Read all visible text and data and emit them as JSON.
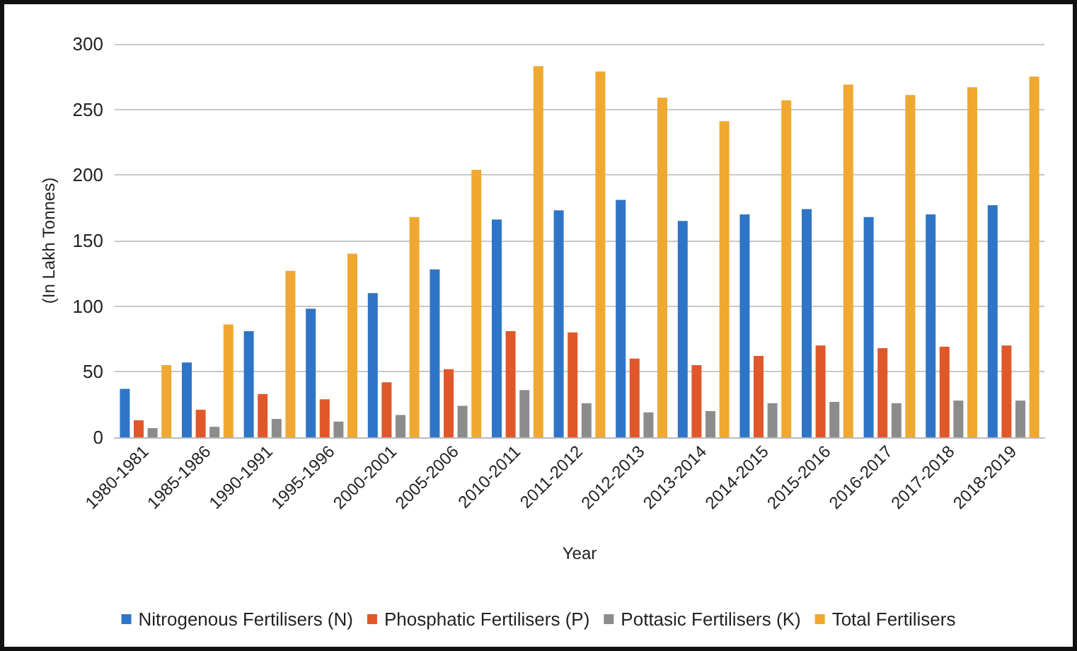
{
  "chart_data": {
    "type": "bar",
    "xlabel": "Year",
    "ylabel": "(In Lakh Tonnes)",
    "categories": [
      "1980-1981",
      "1985-1986",
      "1990-1991",
      "1995-1996",
      "2000-2001",
      "2005-2006",
      "2010-2011",
      "2011-2012",
      "2012-2013",
      "2013-2014",
      "2014-2015",
      "2015-2016",
      "2016-2017",
      "2017-2018",
      "2018-2019"
    ],
    "series": [
      {
        "name": "Nitrogenous Fertilisers (N)",
        "color": "#2e75c7",
        "values": [
          37,
          57,
          81,
          98,
          110,
          128,
          166,
          173,
          181,
          165,
          170,
          174,
          168,
          170,
          177
        ]
      },
      {
        "name": "Phosphatic Fertilisers (P)",
        "color": "#e0572a",
        "values": [
          13,
          21,
          33,
          29,
          42,
          52,
          81,
          80,
          60,
          55,
          62,
          70,
          68,
          69,
          70
        ]
      },
      {
        "name": "Pottasic Fertilisers (K)",
        "color": "#8c8c8c",
        "values": [
          7,
          8,
          14,
          12,
          17,
          24,
          36,
          26,
          19,
          20,
          26,
          27,
          26,
          28,
          28
        ]
      },
      {
        "name": "Total Fertilisers",
        "color": "#f0a830",
        "values": [
          55,
          86,
          127,
          140,
          168,
          204,
          283,
          279,
          259,
          241,
          257,
          269,
          261,
          267,
          275
        ]
      }
    ],
    "ylim": [
      0,
      300
    ],
    "yticks": [
      0,
      50,
      100,
      150,
      200,
      250,
      300
    ],
    "grid": "y",
    "legend": "bottom"
  }
}
